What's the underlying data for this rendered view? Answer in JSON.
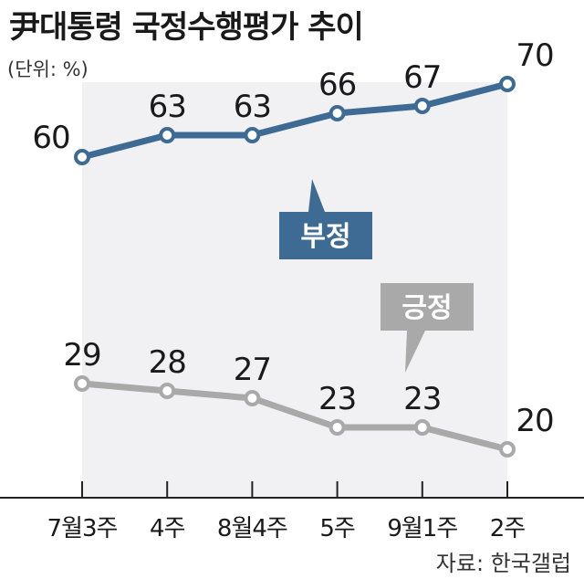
{
  "header": {
    "title": "尹대통령 국정수행평가 추이",
    "unit": "(단위: %)"
  },
  "footer": {
    "source": "자료: 한국갤럽"
  },
  "colors": {
    "negative": "#3d6b94",
    "positive": "#a9a9a9",
    "plot_bg": "#f1f1f4"
  },
  "chart_data": {
    "type": "line",
    "categories": [
      "7월3주",
      "4주",
      "8월4주",
      "5주",
      "9월1주",
      "2주"
    ],
    "series": [
      {
        "name": "부정",
        "values": [
          60,
          63,
          63,
          66,
          67,
          70
        ]
      },
      {
        "name": "긍정",
        "values": [
          29,
          28,
          27,
          23,
          23,
          20
        ]
      }
    ],
    "xlabel": "",
    "ylabel": "",
    "legend": "inline-callouts",
    "grid": false
  }
}
